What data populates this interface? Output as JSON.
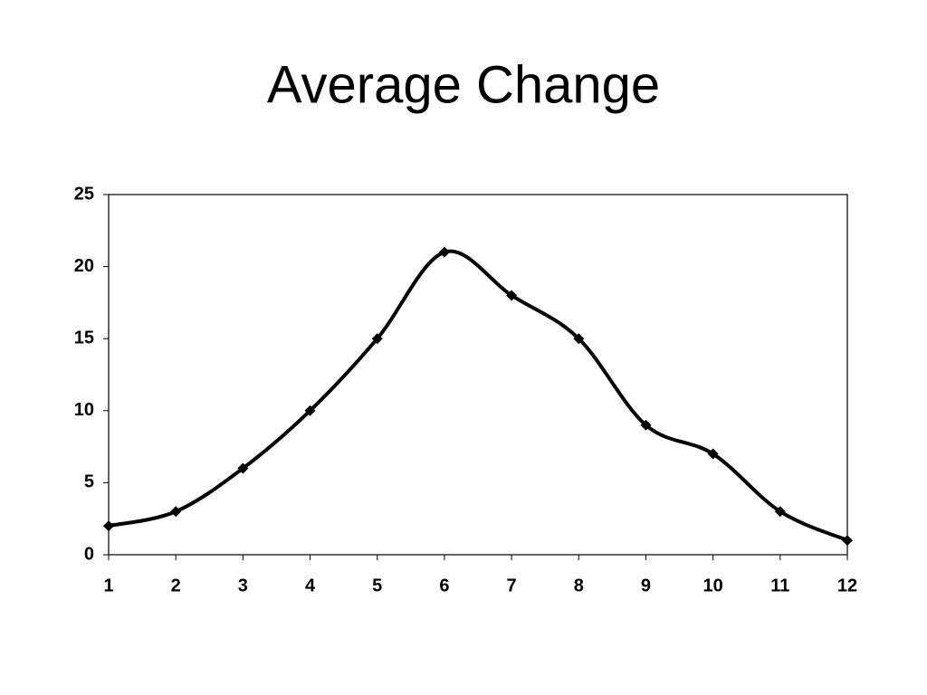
{
  "chart_data": {
    "type": "line",
    "title": "Average Change",
    "x": [
      1,
      2,
      3,
      4,
      5,
      6,
      7,
      8,
      9,
      10,
      11,
      12
    ],
    "series": [
      {
        "name": "Average Change",
        "color": "#000000",
        "values": [
          2,
          3,
          6,
          10,
          15,
          21,
          18,
          15,
          9,
          7,
          3,
          1
        ]
      }
    ],
    "xlim": [
      1,
      12
    ],
    "xticks": [
      1,
      2,
      3,
      4,
      5,
      6,
      7,
      8,
      9,
      10,
      11,
      12
    ],
    "ylim": [
      0,
      25
    ],
    "yticks": [
      0,
      5,
      10,
      15,
      20,
      25
    ],
    "grid": false,
    "legend": false
  }
}
